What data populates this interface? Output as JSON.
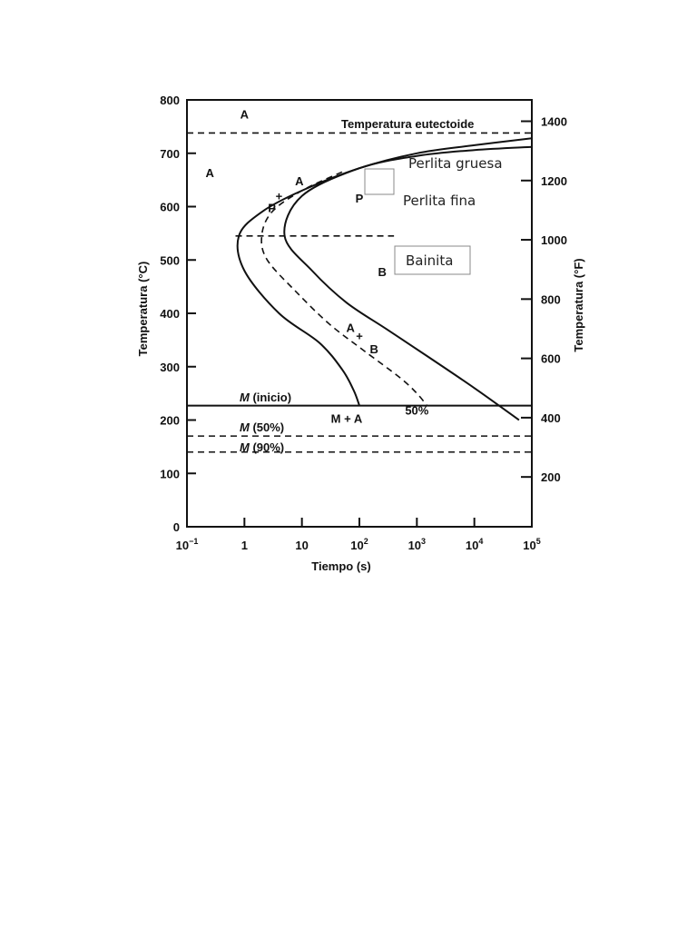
{
  "chart_data": {
    "type": "line",
    "title": "",
    "xlabel": "Tiempo (s)",
    "ylabel": "Temperatura (°C)",
    "y2label": "Temperatura (°F)",
    "x_scale": "log",
    "xlim": [
      0.1,
      100000
    ],
    "ylim": [
      0,
      800
    ],
    "y2lim": [
      32,
      1472
    ],
    "x_ticks": [
      {
        "value": 0.1,
        "base": "10",
        "exp": "−1"
      },
      {
        "value": 1,
        "base": "1",
        "exp": ""
      },
      {
        "value": 10,
        "base": "10",
        "exp": ""
      },
      {
        "value": 100,
        "base": "10",
        "exp": "2"
      },
      {
        "value": 1000,
        "base": "10",
        "exp": "3"
      },
      {
        "value": 10000,
        "base": "10",
        "exp": "4"
      },
      {
        "value": 100000,
        "base": "10",
        "exp": "5"
      }
    ],
    "y_ticks": [
      0,
      100,
      200,
      300,
      400,
      500,
      600,
      700,
      800
    ],
    "y2_ticks": [
      200,
      400,
      600,
      800,
      1000,
      1200,
      1400
    ],
    "grid": false,
    "horizontal_lines": [
      {
        "label": "Temperatura eutectoide",
        "y": 738,
        "style": "dashed"
      },
      {
        "label": "M (inicio)",
        "y": 227,
        "style": "solid"
      },
      {
        "label": "M (50%)",
        "y": 170,
        "style": "dashed"
      },
      {
        "label": "M (90%)",
        "y": 140,
        "style": "dashed"
      },
      {
        "label": "",
        "y": 545,
        "style": "dashed",
        "x_range": [
          0.7,
          400
        ]
      }
    ],
    "series": [
      {
        "name": "",
        "style": "solid",
        "points": [
          [
            100000,
            728
          ],
          [
            10000,
            715
          ],
          [
            1000,
            700
          ],
          [
            100,
            672
          ],
          [
            10,
            630
          ],
          [
            2,
            590
          ],
          [
            0.8,
            545
          ],
          [
            1,
            480
          ],
          [
            4,
            400
          ],
          [
            20,
            345
          ],
          [
            50,
            295
          ],
          [
            80,
            255
          ],
          [
            100,
            227
          ]
        ]
      },
      {
        "name": "50%",
        "style": "dashed",
        "points": [
          [
            50,
            665
          ],
          [
            10,
            630
          ],
          [
            3,
            590
          ],
          [
            2,
            545
          ],
          [
            2.5,
            500
          ],
          [
            8,
            440
          ],
          [
            30,
            380
          ],
          [
            120,
            330
          ],
          [
            500,
            280
          ],
          [
            1000,
            250
          ],
          [
            1500,
            227
          ]
        ]
      },
      {
        "name": "",
        "style": "solid",
        "points": [
          [
            100000,
            712
          ],
          [
            10000,
            706
          ],
          [
            1000,
            695
          ],
          [
            100,
            672
          ],
          [
            10,
            620
          ],
          [
            5,
            545
          ],
          [
            15,
            480
          ],
          [
            60,
            420
          ],
          [
            300,
            370
          ],
          [
            1500,
            320
          ],
          [
            10000,
            260
          ],
          [
            60000,
            200
          ]
        ]
      }
    ],
    "annotations": [
      {
        "text": "A",
        "x": 1.0,
        "y": 765
      },
      {
        "text": "A",
        "x": 0.25,
        "y": 655
      },
      {
        "text": "P",
        "x": 3,
        "y": 590
      },
      {
        "text": "+",
        "x": 4,
        "y": 612
      },
      {
        "text": "A",
        "x": 9,
        "y": 640
      },
      {
        "text": "P",
        "x": 100,
        "y": 608
      },
      {
        "text": "B",
        "x": 250,
        "y": 470
      },
      {
        "text": "A",
        "x": 70,
        "y": 365
      },
      {
        "text": "+",
        "x": 100,
        "y": 350
      },
      {
        "text": "B",
        "x": 180,
        "y": 325
      },
      {
        "text": "M + A",
        "x": 60,
        "y": 195
      },
      {
        "text": "50%",
        "x": 1000,
        "y": 210
      }
    ],
    "overlay_labels": [
      {
        "text": "Perlita gruesa",
        "boxed": false
      },
      {
        "text": "Perlita fina",
        "boxed": false
      },
      {
        "text": "Bainita",
        "boxed": true
      }
    ]
  }
}
